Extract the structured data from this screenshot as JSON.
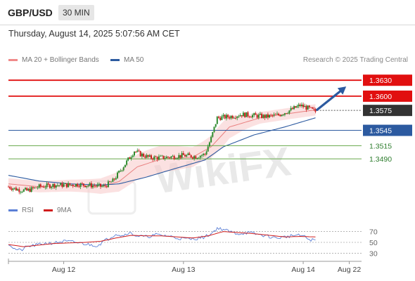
{
  "header": {
    "symbol": "GBP/USD",
    "timeframe": "30 MIN",
    "datetime": "Thursday, August 14, 2025 5:07:56 AM CET"
  },
  "legend": {
    "items": [
      {
        "label": "MA 20 + Bollinger Bands",
        "color": "#f08a8a"
      },
      {
        "label": "MA 50",
        "color": "#2c5aa0"
      }
    ],
    "credit": "Research © 2025 Trading Central"
  },
  "rsi_legend": {
    "items": [
      {
        "label": "RSI",
        "color": "#5b7fd6"
      },
      {
        "label": "9MA",
        "color": "#d01c1c"
      }
    ]
  },
  "watermark": "WikiFX",
  "chart_data": [
    {
      "type": "candlestick",
      "ylim": [
        1.3425,
        1.3652
      ],
      "xlim": [
        0,
        230
      ],
      "x_ticks": [
        {
          "label": "Aug 12",
          "x": 36
        },
        {
          "label": "Aug 13",
          "x": 114
        },
        {
          "label": "Aug 14",
          "x": 192
        },
        {
          "label": "Aug 22",
          "x": 222
        }
      ],
      "levels": [
        {
          "label": "1.3630",
          "value": 1.3632,
          "kind": "resistance"
        },
        {
          "label": "1.3600",
          "value": 1.3604,
          "kind": "resistance"
        },
        {
          "label": "1.3575",
          "value": 1.3579,
          "kind": "current"
        },
        {
          "label": "1.3545",
          "value": 1.3544,
          "kind": "pivot"
        },
        {
          "label": "1.3515",
          "value": 1.3517,
          "kind": "support"
        },
        {
          "label": "1.3490",
          "value": 1.3494,
          "kind": "support"
        }
      ],
      "colors": {
        "resistance": "#e10f0f",
        "pivot": "#2c5aa0",
        "support": "#66a84a",
        "up": "#2e8b2e",
        "down": "#cc2020"
      },
      "close_anchors": [
        [
          0,
          1.3445
        ],
        [
          6,
          1.344
        ],
        [
          12,
          1.3438
        ],
        [
          20,
          1.3445
        ],
        [
          30,
          1.3448
        ],
        [
          38,
          1.3448
        ],
        [
          46,
          1.3449
        ],
        [
          55,
          1.3447
        ],
        [
          62,
          1.3445
        ],
        [
          68,
          1.3455
        ],
        [
          76,
          1.3485
        ],
        [
          82,
          1.3508
        ],
        [
          86,
          1.3502
        ],
        [
          92,
          1.3496
        ],
        [
          100,
          1.3496
        ],
        [
          108,
          1.3498
        ],
        [
          114,
          1.35
        ],
        [
          122,
          1.3498
        ],
        [
          128,
          1.3502
        ],
        [
          132,
          1.353
        ],
        [
          136,
          1.3566
        ],
        [
          144,
          1.3568
        ],
        [
          152,
          1.3572
        ],
        [
          160,
          1.357
        ],
        [
          168,
          1.3568
        ],
        [
          176,
          1.3571
        ],
        [
          184,
          1.358
        ],
        [
          190,
          1.3588
        ],
        [
          196,
          1.3582
        ],
        [
          200,
          1.3577
        ]
      ],
      "ma50_anchors": [
        [
          0,
          1.3465
        ],
        [
          20,
          1.3455
        ],
        [
          40,
          1.345
        ],
        [
          60,
          1.3448
        ],
        [
          72,
          1.345
        ],
        [
          90,
          1.3462
        ],
        [
          110,
          1.3478
        ],
        [
          128,
          1.3492
        ],
        [
          140,
          1.3515
        ],
        [
          160,
          1.3536
        ],
        [
          180,
          1.355
        ],
        [
          200,
          1.3566
        ]
      ],
      "ma20_anchors": [
        [
          0,
          1.345
        ],
        [
          20,
          1.3445
        ],
        [
          40,
          1.3447
        ],
        [
          60,
          1.3446
        ],
        [
          72,
          1.3454
        ],
        [
          84,
          1.348
        ],
        [
          100,
          1.3494
        ],
        [
          120,
          1.3497
        ],
        [
          132,
          1.3515
        ],
        [
          144,
          1.355
        ],
        [
          164,
          1.3566
        ],
        [
          184,
          1.3574
        ],
        [
          200,
          1.358
        ]
      ],
      "forecast": {
        "from": [
          201,
          1.358
        ],
        "to": [
          220,
          1.3621
        ]
      }
    },
    {
      "type": "line",
      "name": "RSI",
      "ylim": [
        15,
        85
      ],
      "y_ticks": [
        70,
        50,
        30
      ],
      "rsi_anchors": [
        [
          0,
          48
        ],
        [
          4,
          38
        ],
        [
          8,
          35
        ],
        [
          12,
          42
        ],
        [
          18,
          45
        ],
        [
          24,
          48
        ],
        [
          30,
          49
        ],
        [
          36,
          52
        ],
        [
          44,
          50
        ],
        [
          52,
          46
        ],
        [
          58,
          44
        ],
        [
          62,
          52
        ],
        [
          66,
          58
        ],
        [
          70,
          66
        ],
        [
          74,
          62
        ],
        [
          78,
          68
        ],
        [
          84,
          62
        ],
        [
          90,
          60
        ],
        [
          96,
          64
        ],
        [
          104,
          62
        ],
        [
          110,
          58
        ],
        [
          118,
          56
        ],
        [
          124,
          58
        ],
        [
          128,
          60
        ],
        [
          132,
          66
        ],
        [
          136,
          76
        ],
        [
          140,
          74
        ],
        [
          146,
          68
        ],
        [
          150,
          66
        ],
        [
          156,
          68
        ],
        [
          162,
          65
        ],
        [
          168,
          62
        ],
        [
          174,
          58
        ],
        [
          180,
          60
        ],
        [
          186,
          63
        ],
        [
          192,
          62
        ],
        [
          196,
          55
        ],
        [
          200,
          54
        ]
      ],
      "ma_anchors": [
        [
          0,
          46
        ],
        [
          10,
          42
        ],
        [
          20,
          45
        ],
        [
          30,
          48
        ],
        [
          40,
          49
        ],
        [
          50,
          50
        ],
        [
          60,
          52
        ],
        [
          70,
          58
        ],
        [
          80,
          63
        ],
        [
          90,
          62
        ],
        [
          100,
          62
        ],
        [
          110,
          60
        ],
        [
          120,
          58
        ],
        [
          130,
          62
        ],
        [
          140,
          70
        ],
        [
          150,
          68
        ],
        [
          160,
          66
        ],
        [
          170,
          63
        ],
        [
          180,
          60
        ],
        [
          190,
          61
        ],
        [
          200,
          60
        ]
      ]
    }
  ]
}
